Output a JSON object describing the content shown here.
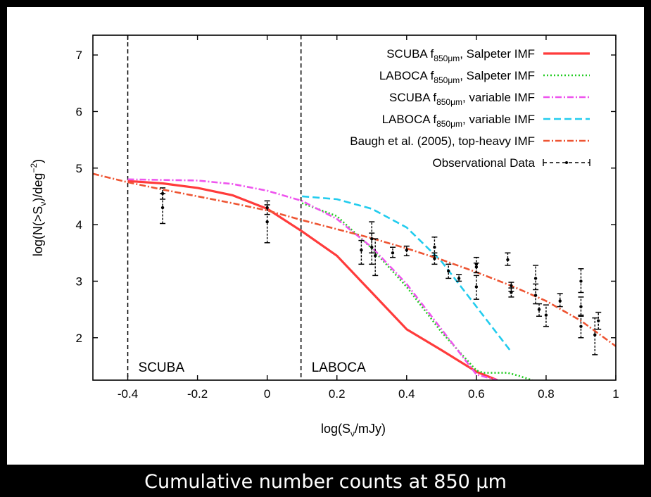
{
  "caption": "Cumulative number counts at 850 μm",
  "chart_data": {
    "type": "line",
    "title": "",
    "xlabel": "log(S_ν/mJy)",
    "ylabel": "log(N(>S_ν)/deg^-2)",
    "xlim": [
      -0.5,
      1.0
    ],
    "ylim": [
      1.25,
      7.35
    ],
    "xticks": [
      -0.4,
      -0.2,
      0,
      0.2,
      0.4,
      0.6,
      0.8,
      1
    ],
    "xtick_labels": [
      "-0.4",
      "-0.2",
      "0",
      "0.2",
      "0.4",
      "0.6",
      "0.8",
      "1"
    ],
    "yticks": [
      2,
      3,
      4,
      5,
      6,
      7
    ],
    "ytick_labels": [
      "2",
      "3",
      "4",
      "5",
      "6",
      "7"
    ],
    "grid": false,
    "legend_position": "top-right",
    "vlines": [
      {
        "x": -0.4,
        "label": "SCUBA"
      },
      {
        "x": 0.097,
        "label": "LABOCA"
      }
    ],
    "series": [
      {
        "name": "SCUBA f850μm, Salpeter IMF",
        "color": "#ff3b3b",
        "style": "solid",
        "x": [
          -0.4,
          -0.3,
          -0.2,
          -0.1,
          0.0,
          0.1,
          0.2,
          0.3,
          0.4,
          0.5,
          0.6,
          0.66
        ],
        "y": [
          4.77,
          4.73,
          4.65,
          4.52,
          4.28,
          3.88,
          3.45,
          2.8,
          2.15,
          1.78,
          1.4,
          1.25
        ]
      },
      {
        "name": "LABOCA f850μm, Salpeter IMF",
        "color": "#22cc22",
        "style": "dotted",
        "x": [
          0.1,
          0.2,
          0.3,
          0.4,
          0.5,
          0.6,
          0.62,
          0.69,
          0.72,
          0.76
        ],
        "y": [
          4.38,
          4.15,
          3.58,
          2.9,
          2.1,
          1.42,
          1.38,
          1.38,
          1.33,
          1.25
        ]
      },
      {
        "name": "SCUBA f850μm, variable IMF",
        "color": "#ee55ee",
        "style": "dashdot",
        "x": [
          -0.4,
          -0.2,
          -0.1,
          0.0,
          0.1,
          0.2,
          0.3,
          0.4,
          0.5,
          0.6,
          0.66
        ],
        "y": [
          4.8,
          4.78,
          4.72,
          4.6,
          4.42,
          4.1,
          3.6,
          2.95,
          2.15,
          1.35,
          1.25
        ]
      },
      {
        "name": "LABOCA f850μm, variable IMF",
        "color": "#22ccee",
        "style": "dashed",
        "x": [
          0.1,
          0.2,
          0.3,
          0.4,
          0.5,
          0.6,
          0.7
        ],
        "y": [
          4.5,
          4.45,
          4.28,
          3.95,
          3.35,
          2.55,
          1.75
        ]
      },
      {
        "name": "Baugh et al. (2005), top-heavy IMF",
        "color": "#ee5533",
        "style": "dashdot",
        "x": [
          -0.5,
          -0.4,
          -0.3,
          -0.2,
          -0.1,
          0.0,
          0.1,
          0.2,
          0.3,
          0.4,
          0.5,
          0.6,
          0.7,
          0.8,
          0.9,
          1.0
        ],
        "y": [
          4.9,
          4.75,
          4.62,
          4.5,
          4.38,
          4.25,
          4.08,
          3.92,
          3.76,
          3.58,
          3.38,
          3.16,
          2.92,
          2.65,
          2.3,
          1.85
        ]
      }
    ],
    "observations": {
      "name": "Observational Data",
      "color": "#000000",
      "points": [
        {
          "x": -0.3,
          "y": 4.55,
          "ylo": 4.45,
          "yhi": 4.65
        },
        {
          "x": -0.3,
          "y": 4.3,
          "ylo": 4.02,
          "yhi": 4.55
        },
        {
          "x": 0.0,
          "y": 4.3,
          "ylo": 4.18,
          "yhi": 4.42
        },
        {
          "x": 0.0,
          "y": 4.05,
          "ylo": 3.68,
          "yhi": 4.35
        },
        {
          "x": 0.27,
          "y": 3.55,
          "ylo": 3.3,
          "yhi": 3.72
        },
        {
          "x": 0.3,
          "y": 3.75,
          "ylo": 3.5,
          "yhi": 4.05
        },
        {
          "x": 0.3,
          "y": 3.6,
          "ylo": 3.3,
          "yhi": 3.85
        },
        {
          "x": 0.31,
          "y": 3.45,
          "ylo": 3.1,
          "yhi": 3.75
        },
        {
          "x": 0.36,
          "y": 3.5,
          "ylo": 3.42,
          "yhi": 3.6
        },
        {
          "x": 0.4,
          "y": 3.55,
          "ylo": 3.45,
          "yhi": 3.62
        },
        {
          "x": 0.48,
          "y": 3.6,
          "ylo": 3.45,
          "yhi": 3.78
        },
        {
          "x": 0.48,
          "y": 3.4,
          "ylo": 3.3,
          "yhi": 3.5
        },
        {
          "x": 0.52,
          "y": 3.18,
          "ylo": 3.05,
          "yhi": 3.3
        },
        {
          "x": 0.55,
          "y": 3.05,
          "ylo": 3.0,
          "yhi": 3.12
        },
        {
          "x": 0.6,
          "y": 3.3,
          "ylo": 3.15,
          "yhi": 3.42
        },
        {
          "x": 0.6,
          "y": 3.25,
          "ylo": 3.15,
          "yhi": 3.32
        },
        {
          "x": 0.6,
          "y": 2.9,
          "ylo": 2.68,
          "yhi": 3.1
        },
        {
          "x": 0.69,
          "y": 3.38,
          "ylo": 3.28,
          "yhi": 3.5
        },
        {
          "x": 0.7,
          "y": 2.92,
          "ylo": 2.82,
          "yhi": 2.98
        },
        {
          "x": 0.7,
          "y": 2.8,
          "ylo": 2.72,
          "yhi": 2.88
        },
        {
          "x": 0.77,
          "y": 3.05,
          "ylo": 2.85,
          "yhi": 3.28
        },
        {
          "x": 0.77,
          "y": 2.75,
          "ylo": 2.6,
          "yhi": 2.95
        },
        {
          "x": 0.78,
          "y": 2.5,
          "ylo": 2.38,
          "yhi": 2.6
        },
        {
          "x": 0.8,
          "y": 2.4,
          "ylo": 2.2,
          "yhi": 2.58
        },
        {
          "x": 0.84,
          "y": 2.65,
          "ylo": 2.55,
          "yhi": 2.78
        },
        {
          "x": 0.9,
          "y": 3.0,
          "ylo": 2.8,
          "yhi": 3.22
        },
        {
          "x": 0.9,
          "y": 2.55,
          "ylo": 2.4,
          "yhi": 2.72
        },
        {
          "x": 0.9,
          "y": 2.2,
          "ylo": 2.0,
          "yhi": 2.38
        },
        {
          "x": 0.94,
          "y": 2.05,
          "ylo": 1.7,
          "yhi": 2.35
        },
        {
          "x": 0.95,
          "y": 2.3,
          "ylo": 2.15,
          "yhi": 2.45
        }
      ]
    }
  },
  "legend": {
    "entries": [
      {
        "prefix": "SCUBA f",
        "sub": "850μm",
        "suffix": ", Salpeter IMF"
      },
      {
        "prefix": "LABOCA f",
        "sub": "850μm",
        "suffix": ", Salpeter IMF"
      },
      {
        "prefix": "SCUBA f",
        "sub": "850μm",
        "suffix": ", variable IMF"
      },
      {
        "prefix": "LABOCA f",
        "sub": "850μm",
        "suffix": ", variable IMF"
      },
      {
        "prefix": "Baugh et al. (2005), top-heavy IMF",
        "sub": "",
        "suffix": ""
      },
      {
        "prefix": "Observational Data",
        "sub": "",
        "suffix": ""
      }
    ]
  },
  "axis_text": {
    "x_main": "log(S",
    "x_sub": "ν",
    "x_tail": "/mJy)",
    "y_main": "log(N(>S",
    "y_sub": "ν",
    "y_mid": ")/deg",
    "y_sup": "−2",
    "y_tail": ")"
  }
}
